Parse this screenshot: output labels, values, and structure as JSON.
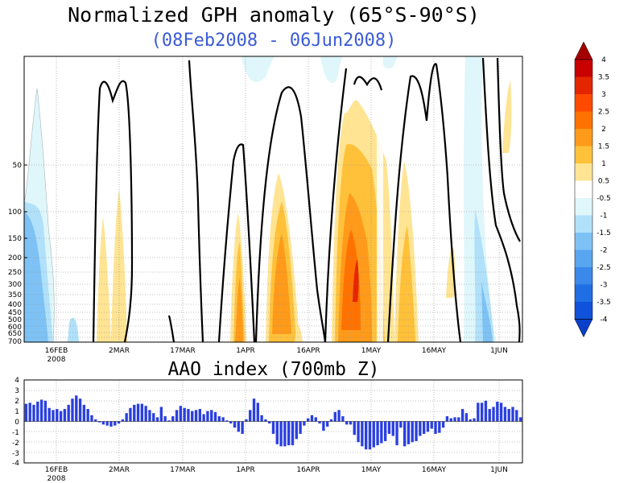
{
  "chart_data": [
    {
      "type": "heatmap",
      "title": "Normalized GPH anomaly (65°S-90°S)",
      "subtitle": "(08Feb2008 - 06Jun2008)",
      "x_ticks": [
        "16FEB",
        "2MAR",
        "17MAR",
        "1APR",
        "16APR",
        "1MAY",
        "16MAY",
        "1JUN"
      ],
      "x_tick_sublabel": "2008",
      "y_ticks": [
        "50",
        "100",
        "150",
        "200",
        "250",
        "300",
        "350",
        "400",
        "450",
        "500",
        "600",
        "650",
        "700"
      ],
      "colorbar": {
        "labels": [
          "4",
          "3.5",
          "3",
          "2.5",
          "2",
          "1.5",
          "1",
          "0.5",
          "-0.5",
          "-1",
          "-1.5",
          "-2",
          "-2.5",
          "-3",
          "-3.5",
          "-4"
        ],
        "colors": [
          "#a50000",
          "#c80000",
          "#e32600",
          "#ff4a00",
          "#ff7200",
          "#ff9a1a",
          "#ffc13a",
          "#ffe493",
          "#ffffff",
          "#dff6fb",
          "#b1e1fa",
          "#7ec2f5",
          "#58a6f0",
          "#3a88ea",
          "#1f6ee3",
          "#1052d9",
          "#0a3fc9"
        ]
      },
      "anomaly_bands": [
        {
          "date": "Feb 8-16",
          "value": -1.2
        },
        {
          "date": "Feb 25-Mar 1",
          "value": 0.8
        },
        {
          "date": "Mar 28-Apr 1",
          "value": 1.6
        },
        {
          "date": "Apr 5-14",
          "value": 1.8
        },
        {
          "date": "Apr 17-20",
          "value": 0.7
        },
        {
          "date": "Apr 25-May 5",
          "value": 2.4
        },
        {
          "date": "May 6-10",
          "value": 1.2
        },
        {
          "date": "Jun 1-3",
          "value": 0.8
        },
        {
          "date": "May 28-Jun 1",
          "value": -1.2
        }
      ]
    },
    {
      "type": "bar",
      "title": "AAO index (700mb Z)",
      "x_ticks": [
        "16FEB",
        "2MAR",
        "17MAR",
        "1APR",
        "16APR",
        "1MAY",
        "16MAY",
        "1JUN"
      ],
      "x_tick_sublabel": "2008",
      "y_ticks": [
        "4",
        "3",
        "2",
        "1",
        "0",
        "-1",
        "-2",
        "-3",
        "-4"
      ],
      "ylim": [
        -4,
        4
      ],
      "start_date": "08Feb2008",
      "values": [
        1.7,
        1.8,
        1.6,
        1.9,
        2.1,
        2.0,
        1.3,
        1.1,
        1.2,
        1.0,
        1.2,
        1.6,
        2.2,
        2.5,
        2.2,
        1.6,
        1.2,
        0.6,
        0.2,
        -0.1,
        -0.3,
        -0.4,
        -0.5,
        -0.4,
        -0.2,
        0.2,
        0.8,
        1.3,
        1.6,
        1.7,
        1.7,
        1.5,
        1.1,
        0.8,
        0.4,
        1.4,
        0.5,
        0.1,
        0.5,
        1.1,
        1.5,
        1.3,
        1.2,
        1.0,
        1.1,
        1.2,
        0.7,
        1.0,
        1.1,
        0.9,
        0.5,
        0.4,
        0.1,
        -0.2,
        -0.6,
        -1.0,
        -1.2,
        0.2,
        1.1,
        2.2,
        1.8,
        0.6,
        0.2,
        -0.2,
        -1.2,
        -2.2,
        -2.4,
        -2.4,
        -2.3,
        -2.3,
        -1.7,
        -1.2,
        -0.4,
        0.3,
        0.6,
        0.4,
        -0.2,
        -0.9,
        -0.5,
        0.2,
        0.9,
        1.1,
        0.5,
        -0.3,
        -0.3,
        -1.3,
        -2.0,
        -2.4,
        -2.7,
        -2.7,
        -2.5,
        -2.3,
        -2.1,
        -1.9,
        -1.2,
        -1.4,
        -2.3,
        -0.6,
        -2.4,
        -2.2,
        -2.0,
        -1.9,
        -1.4,
        -1.2,
        -1.0,
        -0.7,
        -1.2,
        -1.1,
        -0.6,
        0.5,
        0.3,
        0.4,
        0.4,
        1.2,
        0.8,
        0.2,
        0.3,
        1.8,
        1.8,
        2.0,
        1.2,
        1.4,
        1.9,
        1.8,
        1.4,
        1.2,
        1.4,
        1.1,
        0.4
      ]
    }
  ]
}
